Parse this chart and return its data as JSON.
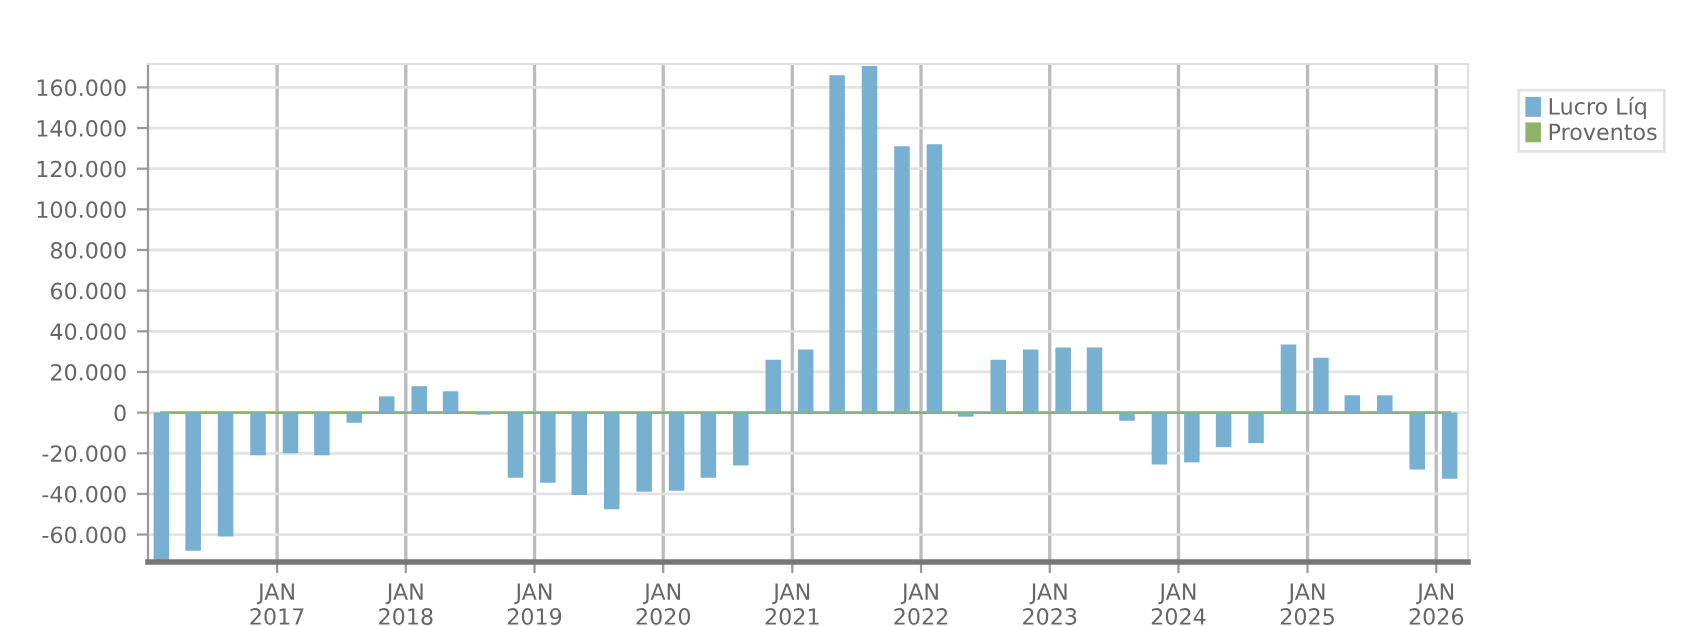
{
  "chart_data": {
    "type": "bar",
    "x": [
      "2016-02-08",
      "2016-05-08",
      "2016-08-08",
      "2016-11-08",
      "2017-02-08",
      "2017-05-08",
      "2017-08-08",
      "2017-11-08",
      "2018-02-08",
      "2018-05-08",
      "2018-08-08",
      "2018-11-08",
      "2019-02-08",
      "2019-05-08",
      "2019-08-08",
      "2019-11-08",
      "2020-02-08",
      "2020-05-08",
      "2020-08-08",
      "2020-11-08",
      "2021-02-08",
      "2021-05-08",
      "2021-08-08",
      "2021-11-08",
      "2022-02-08",
      "2022-05-08",
      "2022-08-08",
      "2022-11-08",
      "2023-02-08",
      "2023-05-08",
      "2023-08-08",
      "2023-11-08",
      "2024-02-08",
      "2024-05-08",
      "2024-08-08",
      "2024-11-08",
      "2025-02-08",
      "2025-05-08",
      "2025-08-08",
      "2025-11-08",
      "2026-02-08"
    ],
    "series": [
      {
        "name": "Lucro Líq",
        "color": "#78b0d2",
        "values": [
          -73000,
          -68000,
          -61000,
          -21000,
          -20000,
          -21000,
          -5000,
          8000,
          13000,
          10500,
          -1000,
          -32000,
          -34500,
          -40500,
          -47500,
          -39000,
          -38500,
          -32000,
          -26000,
          26000,
          31000,
          166000,
          170500,
          131000,
          132000,
          -2000,
          26000,
          31000,
          32000,
          32000,
          -4000,
          -25500,
          -24500,
          -17000,
          -15000,
          33500,
          27000,
          8500,
          8500,
          -28000,
          -32500
        ]
      },
      {
        "name": "Proventos",
        "type": "line",
        "color": "#8db36a",
        "values": [
          0,
          0,
          0,
          0,
          0,
          0,
          0,
          0,
          0,
          0,
          0,
          0,
          0,
          0,
          0,
          0,
          0,
          0,
          0,
          0,
          0,
          0,
          0,
          0,
          0,
          0,
          0,
          0,
          0,
          0,
          0,
          0,
          0,
          0,
          0,
          0,
          0,
          0,
          0,
          0,
          0
        ]
      }
    ],
    "xlim": [
      "2016-01",
      "2026-04"
    ],
    "xticks": [
      {
        "value": "2017-01",
        "label": "JAN\n2017"
      },
      {
        "value": "2018-01",
        "label": "JAN\n2018"
      },
      {
        "value": "2019-01",
        "label": "JAN\n2019"
      },
      {
        "value": "2020-01",
        "label": "JAN\n2020"
      },
      {
        "value": "2021-01",
        "label": "JAN\n2021"
      },
      {
        "value": "2022-01",
        "label": "JAN\n2022"
      },
      {
        "value": "2023-01",
        "label": "JAN\n2023"
      },
      {
        "value": "2024-01",
        "label": "JAN\n2024"
      },
      {
        "value": "2025-01",
        "label": "JAN\n2025"
      },
      {
        "value": "2026-01",
        "label": "JAN\n2026"
      }
    ],
    "ylim": [
      -73500,
      171500
    ],
    "yticks": [
      {
        "value": -60000,
        "label": "-60.000"
      },
      {
        "value": -40000,
        "label": "-40.000"
      },
      {
        "value": -20000,
        "label": "-20.000"
      },
      {
        "value": 0,
        "label": "0"
      },
      {
        "value": 20000,
        "label": "20.000"
      },
      {
        "value": 40000,
        "label": "40.000"
      },
      {
        "value": 60000,
        "label": "60.000"
      },
      {
        "value": 80000,
        "label": "80.000"
      },
      {
        "value": 100000,
        "label": "100.000"
      },
      {
        "value": 120000,
        "label": "120.000"
      },
      {
        "value": 140000,
        "label": "140.000"
      },
      {
        "value": 160000,
        "label": "160.000"
      }
    ],
    "grid": true,
    "legend": "top right"
  }
}
